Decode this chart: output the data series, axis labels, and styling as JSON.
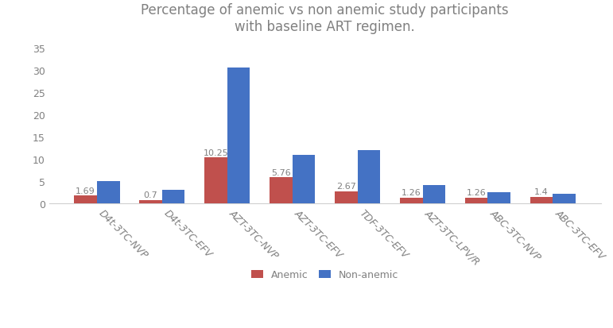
{
  "title": "Percentage of anemic vs non anemic study participants\nwith baseline ART regimen.",
  "categories": [
    "D4t-3TC-NVP",
    "D4t-3TC-EFV",
    "AZT-3TC-NVP",
    "AZT-3TC-EFV",
    "TDF-3TC-EFV",
    "AZT-3TC-LPV/R",
    "ABC-3TC-NVP",
    "ABC-3TC-EFV"
  ],
  "anemic": [
    1.69,
    0.7,
    10.25,
    5.76,
    2.67,
    1.26,
    1.26,
    1.4
  ],
  "non_anemic": [
    5.0,
    3.0,
    30.5,
    10.9,
    12.0,
    4.0,
    2.5,
    2.1
  ],
  "anemic_color": "#c0504d",
  "non_anemic_color": "#4472c4",
  "bar_width": 0.35,
  "ylim": [
    0,
    37
  ],
  "yticks": [
    0,
    5,
    10,
    15,
    20,
    25,
    30,
    35
  ],
  "title_fontsize": 12,
  "tick_fontsize": 9,
  "label_fontsize": 9,
  "legend_labels": [
    "Anemic",
    "Non-anemic"
  ],
  "annotation_values": [
    1.69,
    0.7,
    10.25,
    5.76,
    2.67,
    1.26,
    1.26,
    1.4
  ],
  "annotation_fontsize": 8,
  "text_color": "#808080",
  "spine_color": "#d0d0d0"
}
